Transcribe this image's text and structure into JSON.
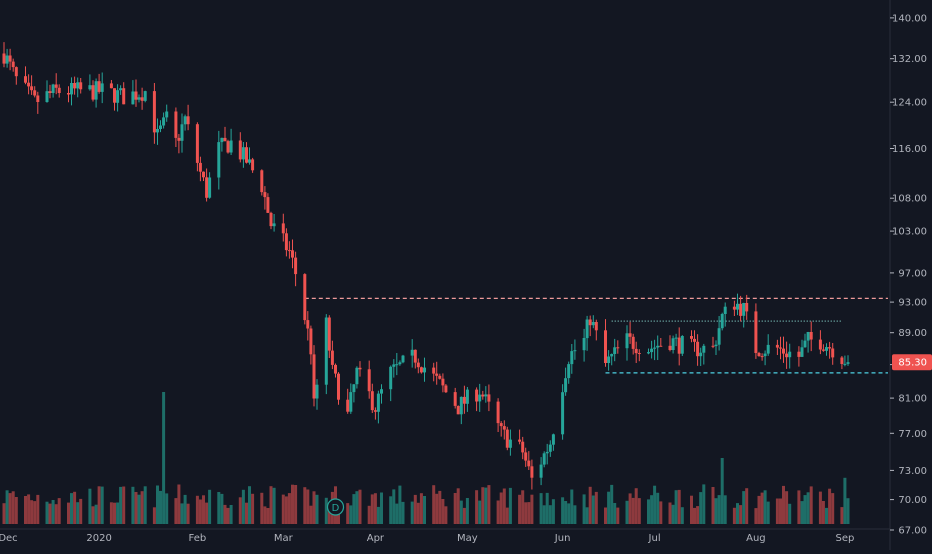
{
  "colors": {
    "background": "#131722",
    "up": "#26a69a",
    "down": "#ef5350",
    "up_volume": "#1e6e68",
    "down_volume": "#8e3a3e",
    "grid": "#1e222d",
    "axis_text": "#b2b5be",
    "price_tag_bg": "#ef5350",
    "resistance_line": "#ef9a9a",
    "support_line": "#4dd0e1",
    "midrange_line": "#80cbc4",
    "dividend_marker": "#26a69a"
  },
  "chart_data": {
    "type": "candlestick",
    "instrument_current_price_label": "85.30",
    "ylim": [
      67,
      142
    ],
    "y_axis_scale": "log",
    "y_ticks": [
      "140.00",
      "132.00",
      "124.00",
      "116.00",
      "108.00",
      "103.00",
      "97.00",
      "93.00",
      "89.00",
      "85.00",
      "81.00",
      "77.00",
      "73.00",
      "70.00",
      "67.00"
    ],
    "x_ticks": [
      "Dec",
      "2020",
      "Feb",
      "Mar",
      "Apr",
      "May",
      "Jun",
      "Jul",
      "Aug",
      "Sep"
    ],
    "dividend_marker_label": "D",
    "grid": false,
    "lines": [
      {
        "name": "resistance",
        "y": 93.5,
        "style": "dashed",
        "from": "2020-03-09",
        "to": "end"
      },
      {
        "name": "support",
        "y": 84.0,
        "style": "dashed",
        "from": "2020-06-15",
        "to": "end"
      },
      {
        "name": "mid-range",
        "y": 90.5,
        "style": "dotted",
        "from": "2020-06-17",
        "to": "2020-08-31"
      }
    ],
    "close_path": [
      [
        "2019-12-02",
        133
      ],
      [
        "2019-12-06",
        128
      ],
      [
        "2019-12-12",
        124
      ],
      [
        "2019-12-19",
        126
      ],
      [
        "2019-12-26",
        126
      ],
      [
        "2020-01-03",
        126
      ],
      [
        "2020-01-10",
        125
      ],
      [
        "2020-01-17",
        126
      ],
      [
        "2020-01-21",
        118
      ],
      [
        "2020-01-24",
        121
      ],
      [
        "2020-01-27",
        117
      ],
      [
        "2020-01-30",
        121
      ],
      [
        "2020-02-04",
        112
      ],
      [
        "2020-02-06",
        109
      ],
      [
        "2020-02-10",
        116
      ],
      [
        "2020-02-14",
        117
      ],
      [
        "2020-02-19",
        114
      ],
      [
        "2020-02-24",
        110
      ],
      [
        "2020-02-27",
        104
      ],
      [
        "2020-03-04",
        100
      ],
      [
        "2020-03-06",
        97
      ],
      [
        "2020-03-09",
        91
      ],
      [
        "2020-03-11",
        87
      ],
      [
        "2020-03-12",
        80
      ],
      [
        "2020-03-16",
        90
      ],
      [
        "2020-03-18",
        84
      ],
      [
        "2020-03-20",
        82
      ],
      [
        "2020-03-23",
        79
      ],
      [
        "2020-03-26",
        84
      ],
      [
        "2020-04-01",
        80
      ],
      [
        "2020-04-06",
        84
      ],
      [
        "2020-04-14",
        86
      ],
      [
        "2020-04-21",
        83
      ],
      [
        "2020-04-28",
        80
      ],
      [
        "2020-05-05",
        82
      ],
      [
        "2020-05-12",
        77
      ],
      [
        "2020-05-19",
        75
      ],
      [
        "2020-05-22",
        72
      ],
      [
        "2020-05-28",
        76
      ],
      [
        "2020-06-03",
        86
      ],
      [
        "2020-06-08",
        88
      ],
      [
        "2020-06-10",
        91
      ],
      [
        "2020-06-15",
        85
      ],
      [
        "2020-06-22",
        88
      ],
      [
        "2020-06-29",
        87
      ],
      [
        "2020-07-06",
        88
      ],
      [
        "2020-07-13",
        87
      ],
      [
        "2020-07-20",
        87
      ],
      [
        "2020-07-23",
        91
      ],
      [
        "2020-07-27",
        93
      ],
      [
        "2020-07-30",
        92
      ],
      [
        "2020-08-03",
        87
      ],
      [
        "2020-08-10",
        87
      ],
      [
        "2020-08-17",
        86
      ],
      [
        "2020-08-20",
        88
      ],
      [
        "2020-08-24",
        88
      ],
      [
        "2020-08-28",
        87
      ],
      [
        "2020-09-02",
        85.3
      ]
    ],
    "volume_spikes": [
      {
        "date": "2020-01-23",
        "relative_height": 1.0
      },
      {
        "date": "2020-07-23",
        "relative_height": 0.5
      },
      {
        "date": "2020-09-01",
        "relative_height": 0.35
      }
    ]
  }
}
